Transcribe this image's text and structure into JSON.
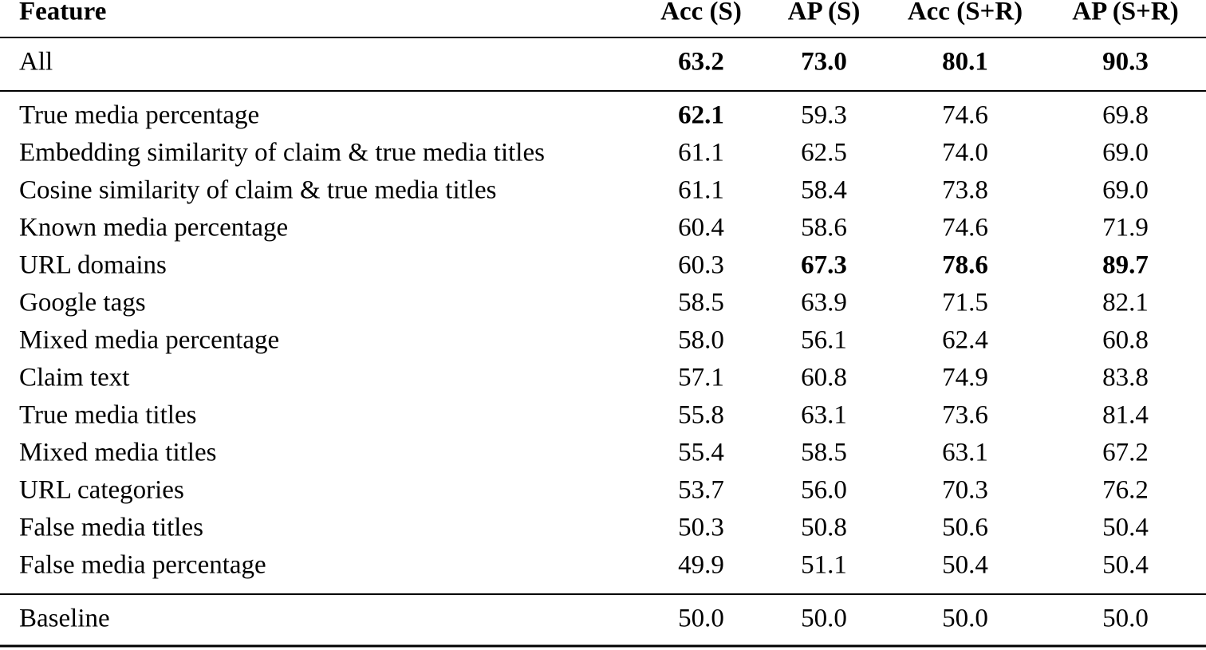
{
  "table": {
    "header": [
      "Feature",
      "Acc (S)",
      "AP (S)",
      "Acc (S+R)",
      "AP (S+R)"
    ],
    "rows": [
      [
        "All",
        "63.2",
        "73.0",
        "80.1",
        "90.3"
      ],
      [
        "True media percentage",
        "62.1",
        "59.3",
        "74.6",
        "69.8"
      ],
      [
        "Embedding similarity of claim & true media titles",
        "61.1",
        "62.5",
        "74.0",
        "69.0"
      ],
      [
        "Cosine similarity of claim & true media titles",
        "61.1",
        "58.4",
        "73.8",
        "69.0"
      ],
      [
        "Known media percentage",
        "60.4",
        "58.6",
        "74.6",
        "71.9"
      ],
      [
        "URL domains",
        "60.3",
        "67.3",
        "78.6",
        "89.7"
      ],
      [
        "Google tags",
        "58.5",
        "63.9",
        "71.5",
        "82.1"
      ],
      [
        "Mixed media percentage",
        "58.0",
        "56.1",
        "62.4",
        "60.8"
      ],
      [
        "Claim text",
        "57.1",
        "60.8",
        "74.9",
        "83.8"
      ],
      [
        "True media titles",
        "55.8",
        "63.1",
        "73.6",
        "81.4"
      ],
      [
        "Mixed media titles",
        "55.4",
        "58.5",
        "63.1",
        "67.2"
      ],
      [
        "URL categories",
        "53.7",
        "56.0",
        "70.3",
        "76.2"
      ],
      [
        "False media titles",
        "50.3",
        "50.8",
        "50.6",
        "50.4"
      ],
      [
        "False media percentage",
        "49.9",
        "51.1",
        "50.4",
        "50.4"
      ],
      [
        "Baseline",
        "50.0",
        "50.0",
        "50.0",
        "50.0"
      ]
    ],
    "bold": [
      [
        0,
        1
      ],
      [
        0,
        2
      ],
      [
        0,
        3
      ],
      [
        0,
        4
      ],
      [
        1,
        1
      ],
      [
        5,
        2
      ],
      [
        5,
        3
      ],
      [
        5,
        4
      ]
    ]
  }
}
